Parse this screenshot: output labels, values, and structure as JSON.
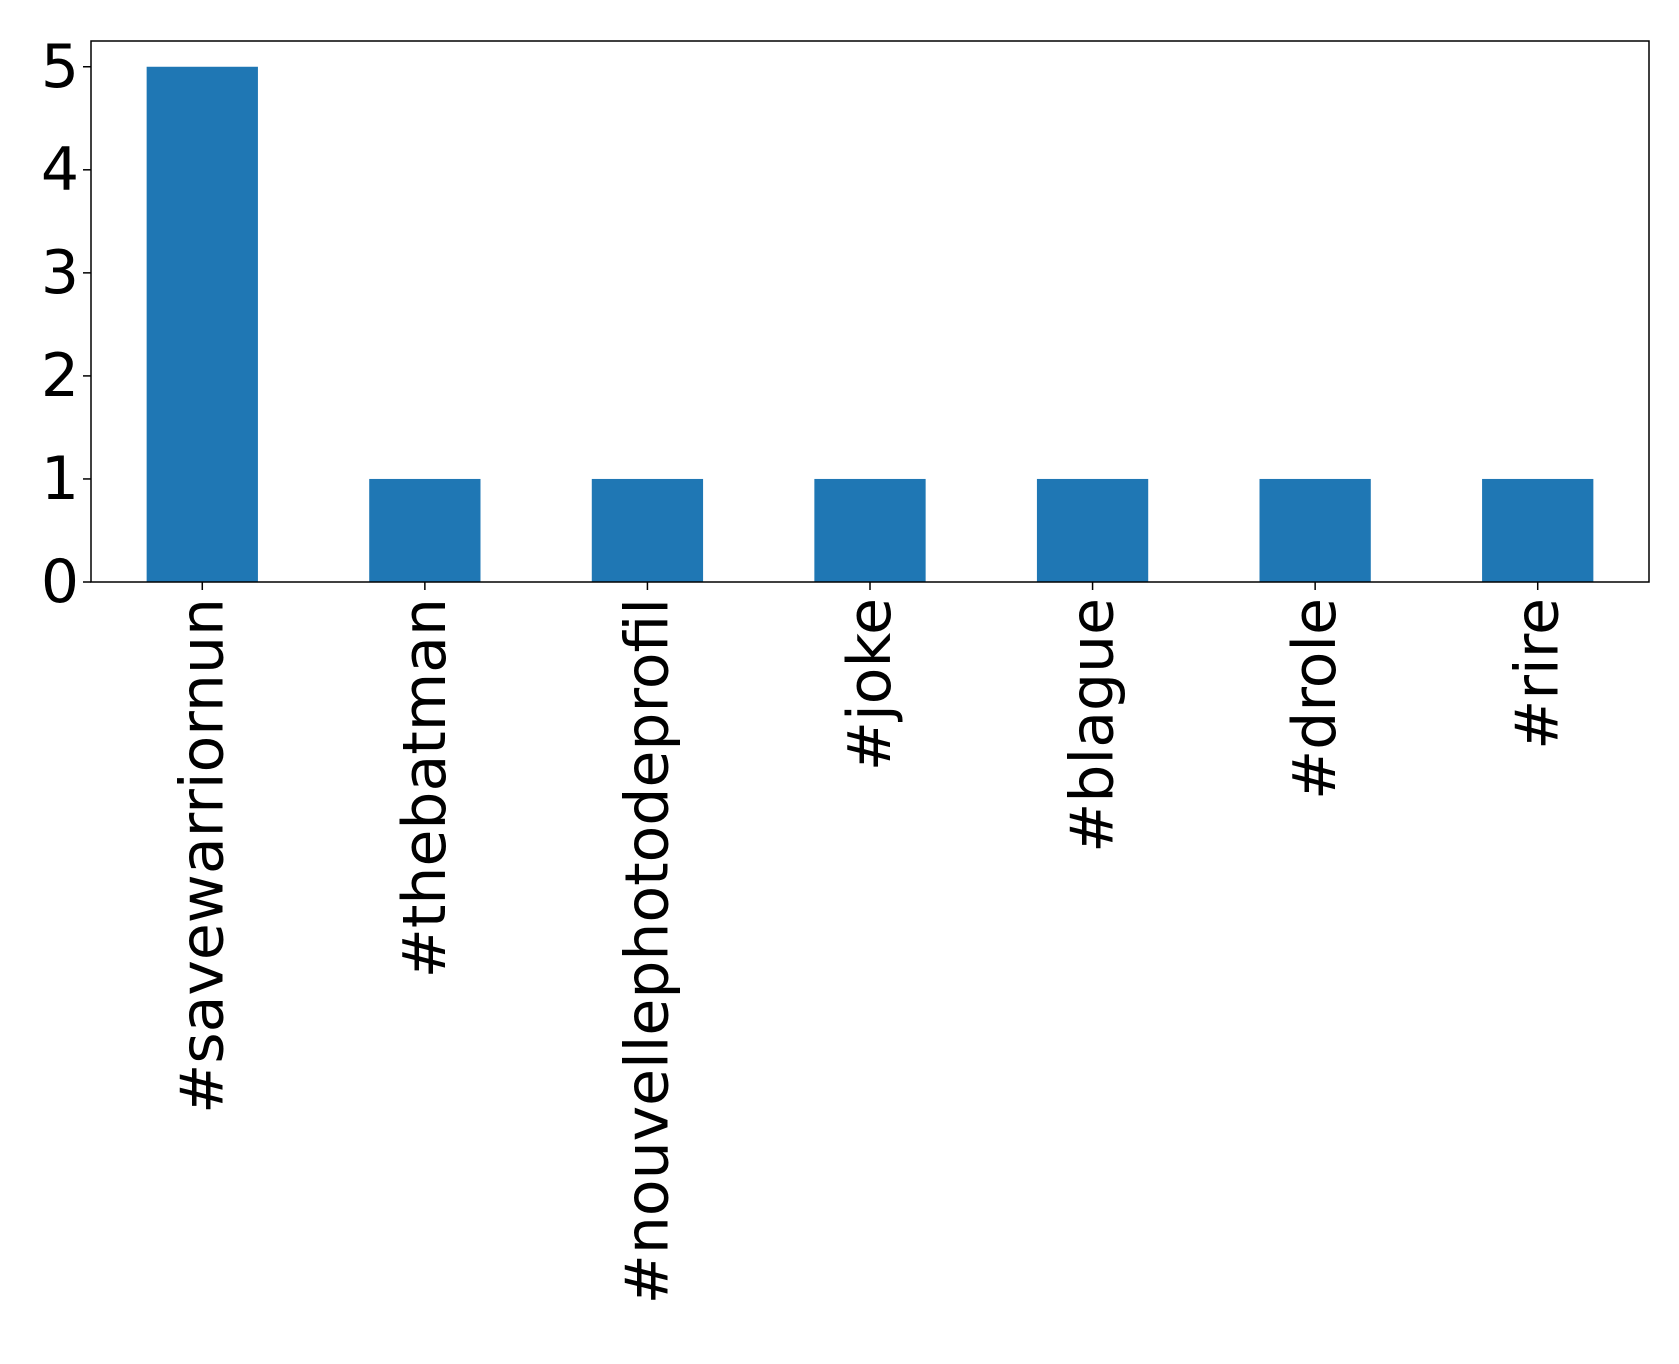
{
  "chart_data": {
    "type": "bar",
    "title": "",
    "xlabel": "",
    "ylabel": "",
    "categories": [
      "#savewarriornun",
      "#thebatman",
      "#nouvellephotodeprofil",
      "#joke",
      "#blague",
      "#drole",
      "#rire"
    ],
    "values": [
      5,
      1,
      1,
      1,
      1,
      1,
      1
    ],
    "ylim": [
      0,
      5.25
    ],
    "yticks": [
      0,
      1,
      2,
      3,
      4,
      5
    ],
    "bar_color": "#1f77b4",
    "grid": false,
    "legend": "none"
  }
}
